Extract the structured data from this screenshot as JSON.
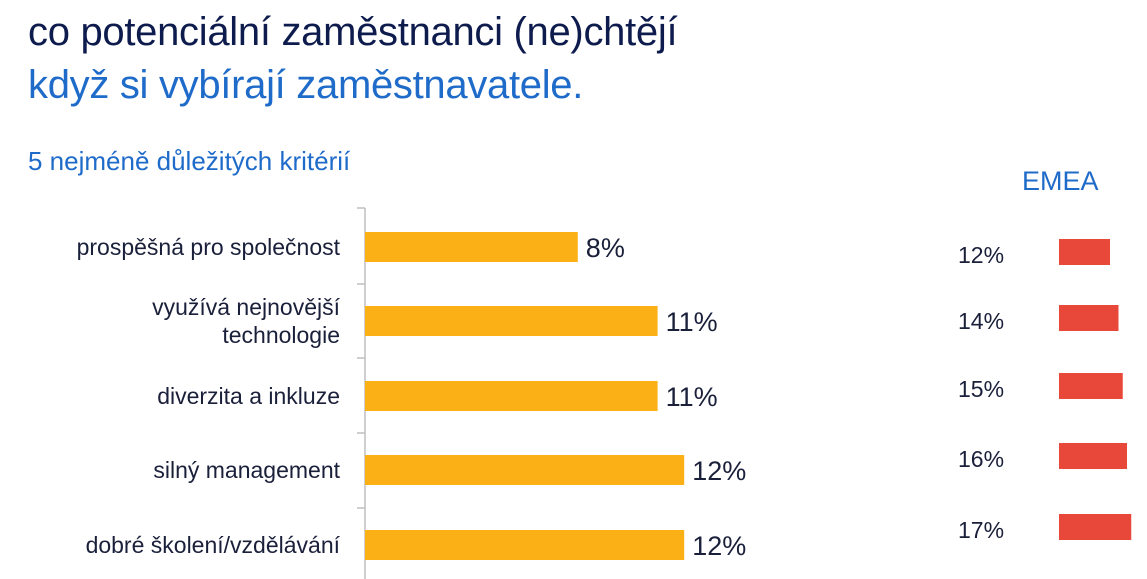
{
  "title": {
    "line1": "co potenciální zaměstnanci (ne)chtějí",
    "line2": "když si vybírají zaměstnavatele."
  },
  "colors": {
    "title_dark": "#0e1b4d",
    "accent_blue": "#1f6bc9",
    "bar_main": "#fbb116",
    "bar_emea": "#e8483a",
    "axis": "#bfbfbf",
    "label_text": "#1a1f3a"
  },
  "chart_data": [
    {
      "type": "bar",
      "orientation": "horizontal",
      "title": "5 nejméně důležitých kritérií",
      "categories": [
        [
          "prospěšná pro společnost"
        ],
        [
          "využívá nejnovější",
          "technologie"
        ],
        [
          "diverzita a inkluze"
        ],
        [
          "silný management"
        ],
        [
          "dobré školení/vzdělávání"
        ]
      ],
      "values": [
        8,
        11,
        11,
        12,
        12
      ],
      "value_labels": [
        "8%",
        "11%",
        "11%",
        "12%",
        "12%"
      ],
      "unit": "%",
      "xlim": [
        0,
        25
      ]
    },
    {
      "type": "bar",
      "orientation": "horizontal",
      "title": "EMEA",
      "values": [
        12,
        14,
        15,
        16,
        17
      ],
      "value_labels": [
        "12%",
        "14%",
        "15%",
        "16%",
        "17%"
      ],
      "unit": "%"
    }
  ]
}
